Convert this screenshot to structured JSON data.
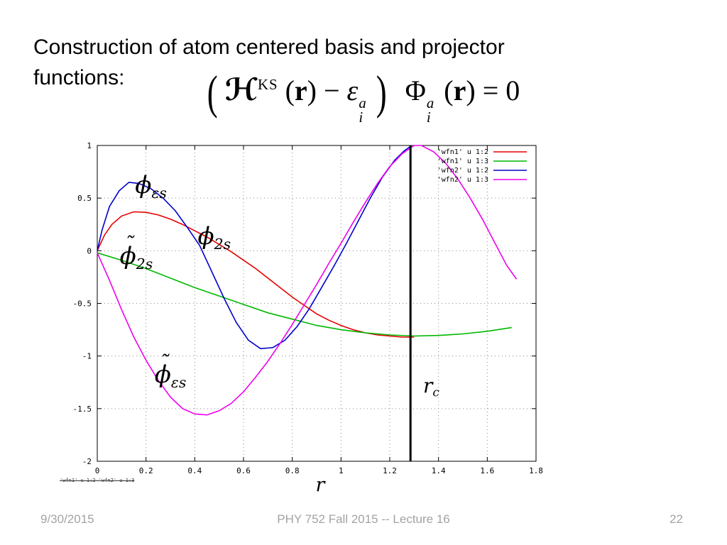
{
  "slide": {
    "title": "Construction of atom centered basis and projector functions:",
    "footer": {
      "date": "9/30/2015",
      "course": "PHY 752  Fall 2015 -- Lecture 16",
      "page": "22"
    }
  },
  "equation": {
    "lparen": "(",
    "H": "ℋ",
    "H_sup": "KS",
    "open1": "(",
    "r1": "r",
    "close1": ")",
    "minus": "−",
    "epsilon": "ε",
    "eps_sup": "a",
    "eps_sub": "i",
    "rparen": ")",
    "Phi": "Φ",
    "Phi_sup": "a",
    "Phi_sub": "i",
    "open2": "(",
    "r2": "r",
    "close2": ")",
    "equals": "= 0"
  },
  "chart_data": {
    "type": "line",
    "title": "",
    "xlabel": "r",
    "ylabel": "",
    "xlim": [
      0,
      1.8
    ],
    "ylim": [
      -2,
      1
    ],
    "xticks": [
      0,
      0.2,
      0.4,
      0.6,
      0.8,
      1,
      1.2,
      1.4,
      1.6,
      1.8
    ],
    "xtick_labels": [
      "0",
      "0.2",
      "0.4",
      "0.6",
      "0.8",
      "1",
      "1.2",
      "1.4",
      "1.6",
      "1.8"
    ],
    "yticks": [
      1,
      0.5,
      0,
      -0.5,
      -1,
      -1.5,
      -2
    ],
    "ytick_labels": [
      "1",
      "0.5",
      "0",
      "-0.5",
      "-1",
      "-1.5",
      "-2"
    ],
    "grid": true,
    "legend_position": "top-right",
    "vline": {
      "x": 1.285,
      "label": "rc"
    },
    "stray_text": "'wfn1' u 1:2  'wfn2' u 1:3",
    "series": [
      {
        "name": "'wfn1' u 1:2",
        "color": "#e60000",
        "points": [
          [
            0,
            0
          ],
          [
            0.03,
            0.15
          ],
          [
            0.06,
            0.25
          ],
          [
            0.1,
            0.33
          ],
          [
            0.15,
            0.37
          ],
          [
            0.2,
            0.365
          ],
          [
            0.25,
            0.34
          ],
          [
            0.3,
            0.3
          ],
          [
            0.35,
            0.25
          ],
          [
            0.4,
            0.19
          ],
          [
            0.45,
            0.13
          ],
          [
            0.5,
            0.06
          ],
          [
            0.55,
            -0.01
          ],
          [
            0.6,
            -0.09
          ],
          [
            0.65,
            -0.17
          ],
          [
            0.7,
            -0.26
          ],
          [
            0.75,
            -0.35
          ],
          [
            0.8,
            -0.44
          ],
          [
            0.85,
            -0.52
          ],
          [
            0.9,
            -0.6
          ],
          [
            0.95,
            -0.66
          ],
          [
            1.0,
            -0.71
          ],
          [
            1.05,
            -0.75
          ],
          [
            1.1,
            -0.78
          ],
          [
            1.15,
            -0.8
          ],
          [
            1.2,
            -0.81
          ],
          [
            1.25,
            -0.82
          ],
          [
            1.3,
            -0.82
          ]
        ]
      },
      {
        "name": "'wfn1' u 1:3",
        "color": "#00b800",
        "points": [
          [
            0,
            -0.02
          ],
          [
            0.1,
            -0.09
          ],
          [
            0.2,
            -0.17
          ],
          [
            0.3,
            -0.26
          ],
          [
            0.4,
            -0.35
          ],
          [
            0.5,
            -0.43
          ],
          [
            0.6,
            -0.51
          ],
          [
            0.7,
            -0.59
          ],
          [
            0.8,
            -0.65
          ],
          [
            0.9,
            -0.71
          ],
          [
            1.0,
            -0.75
          ],
          [
            1.1,
            -0.78
          ],
          [
            1.2,
            -0.8
          ],
          [
            1.3,
            -0.81
          ],
          [
            1.4,
            -0.805
          ],
          [
            1.5,
            -0.79
          ],
          [
            1.6,
            -0.765
          ],
          [
            1.7,
            -0.73
          ]
        ]
      },
      {
        "name": "'wfn2' u 1:2",
        "color": "#0000cc",
        "points": [
          [
            0,
            0
          ],
          [
            0.02,
            0.2
          ],
          [
            0.05,
            0.42
          ],
          [
            0.09,
            0.57
          ],
          [
            0.13,
            0.65
          ],
          [
            0.17,
            0.64
          ],
          [
            0.22,
            0.59
          ],
          [
            0.27,
            0.5
          ],
          [
            0.32,
            0.38
          ],
          [
            0.37,
            0.22
          ],
          [
            0.42,
            0.05
          ],
          [
            0.47,
            -0.2
          ],
          [
            0.52,
            -0.45
          ],
          [
            0.57,
            -0.68
          ],
          [
            0.62,
            -0.85
          ],
          [
            0.67,
            -0.93
          ],
          [
            0.72,
            -0.92
          ],
          [
            0.77,
            -0.85
          ],
          [
            0.82,
            -0.72
          ],
          [
            0.87,
            -0.55
          ],
          [
            0.92,
            -0.35
          ],
          [
            0.97,
            -0.15
          ],
          [
            1.02,
            0.06
          ],
          [
            1.07,
            0.28
          ],
          [
            1.12,
            0.5
          ],
          [
            1.17,
            0.7
          ],
          [
            1.22,
            0.86
          ],
          [
            1.26,
            0.95
          ],
          [
            1.29,
            1.0
          ]
        ]
      },
      {
        "name": "'wfn2' u 1:3",
        "color": "#ee00ee",
        "points": [
          [
            0,
            -0.02
          ],
          [
            0.05,
            -0.28
          ],
          [
            0.1,
            -0.56
          ],
          [
            0.15,
            -0.82
          ],
          [
            0.2,
            -1.04
          ],
          [
            0.25,
            -1.23
          ],
          [
            0.3,
            -1.39
          ],
          [
            0.35,
            -1.5
          ],
          [
            0.4,
            -1.55
          ],
          [
            0.45,
            -1.56
          ],
          [
            0.5,
            -1.52
          ],
          [
            0.55,
            -1.45
          ],
          [
            0.6,
            -1.34
          ],
          [
            0.65,
            -1.2
          ],
          [
            0.7,
            -1.05
          ],
          [
            0.75,
            -0.88
          ],
          [
            0.8,
            -0.7
          ],
          [
            0.85,
            -0.51
          ],
          [
            0.9,
            -0.32
          ],
          [
            0.95,
            -0.12
          ],
          [
            1.0,
            0.07
          ],
          [
            1.05,
            0.27
          ],
          [
            1.1,
            0.46
          ],
          [
            1.15,
            0.64
          ],
          [
            1.2,
            0.8
          ],
          [
            1.25,
            0.92
          ],
          [
            1.3,
            1.0
          ],
          [
            1.33,
            1.0
          ],
          [
            1.38,
            0.94
          ],
          [
            1.43,
            0.83
          ],
          [
            1.48,
            0.68
          ],
          [
            1.53,
            0.5
          ],
          [
            1.58,
            0.3
          ],
          [
            1.63,
            0.08
          ],
          [
            1.68,
            -0.14
          ],
          [
            1.72,
            -0.27
          ]
        ]
      }
    ],
    "annotations": [
      {
        "id": "label-phi-eps-s",
        "base": "ϕ",
        "tilde": false,
        "sub": "εs",
        "x": 0.22,
        "y": 0.6,
        "size": 34
      },
      {
        "id": "label-phi-2s",
        "base": "ϕ",
        "tilde": false,
        "sub": "2s",
        "x": 0.48,
        "y": 0.12,
        "size": 34
      },
      {
        "id": "label-phi-tilde-2s",
        "base": "ϕ",
        "tilde": true,
        "sub": "2s",
        "x": 0.16,
        "y": -0.07,
        "size": 34
      },
      {
        "id": "label-phi-tilde-eps-s",
        "base": "ϕ",
        "tilde": true,
        "sub": "εs",
        "x": 0.3,
        "y": -1.2,
        "size": 34
      },
      {
        "id": "label-r-c",
        "base": "r",
        "tilde": false,
        "sub": "c",
        "x": 1.37,
        "y": -1.3,
        "size": 28
      }
    ]
  }
}
